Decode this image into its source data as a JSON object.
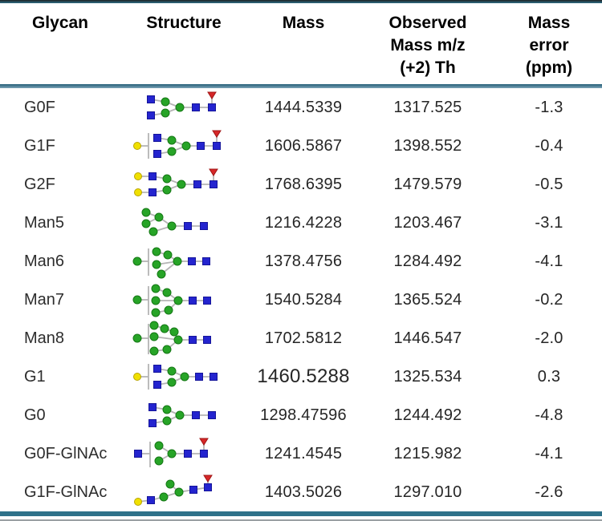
{
  "header": {
    "columns": [
      "Glycan",
      "Structure",
      "Mass",
      "Observed\nMass m/z\n(+2) Th",
      "Mass\nerror\n(ppm)"
    ]
  },
  "rows": [
    {
      "glycan": "G0F",
      "structure": "G0F",
      "mass": "1444.5339",
      "observed": "1317.525",
      "error": "-1.3",
      "mass_large": false
    },
    {
      "glycan": "G1F",
      "structure": "G1F",
      "mass": "1606.5867",
      "observed": "1398.552",
      "error": "-0.4",
      "mass_large": false
    },
    {
      "glycan": "G2F",
      "structure": "G2F",
      "mass": "1768.6395",
      "observed": "1479.579",
      "error": "-0.5",
      "mass_large": false
    },
    {
      "glycan": "Man5",
      "structure": "Man5",
      "mass": "1216.4228",
      "observed": "1203.467",
      "error": "-3.1",
      "mass_large": false
    },
    {
      "glycan": "Man6",
      "structure": "Man6",
      "mass": "1378.4756",
      "observed": "1284.492",
      "error": "-4.1",
      "mass_large": false
    },
    {
      "glycan": "Man7",
      "structure": "Man7",
      "mass": "1540.5284",
      "observed": "1365.524",
      "error": "-0.2",
      "mass_large": false
    },
    {
      "glycan": "Man8",
      "structure": "Man8",
      "mass": "1702.5812",
      "observed": "1446.547",
      "error": "-2.0",
      "mass_large": false
    },
    {
      "glycan": "G1",
      "structure": "G1",
      "mass": "1460.5288",
      "observed": "1325.534",
      "error": "0.3",
      "mass_large": true
    },
    {
      "glycan": "G0",
      "structure": "G0",
      "mass": "1298.47596",
      "observed": "1244.492",
      "error": "-4.8",
      "mass_large": false
    },
    {
      "glycan": "G0F-GlNAc",
      "structure": "G0F-GlNAc",
      "mass": "1241.4545",
      "observed": "1215.982",
      "error": "-4.1",
      "mass_large": false
    },
    {
      "glycan": "G1F-GlNAc",
      "structure": "G1F-GlNAc",
      "mass": "1403.5026",
      "observed": "1297.010",
      "error": "-2.6",
      "mass_large": false
    }
  ],
  "colors": {
    "glcnac_blue": "#2424cf",
    "glcnac_blue_stroke": "#15159a",
    "mannose_green": "#27a427",
    "mannose_green_stroke": "#157815",
    "galactose_yellow": "#f0e000",
    "galactose_yellow_stroke": "#b8a400",
    "fucose_red": "#d62728",
    "fucose_red_stroke": "#a01616",
    "linkage_gray": "#b4b4b4",
    "border_teal": "#2e7189"
  },
  "icon_legend": {
    "blue-square-icon": "GlcNAc",
    "green-circle-icon": "Mannose",
    "yellow-circle-icon": "Galactose",
    "red-triangle-icon": "Fucose"
  },
  "structures": {
    "G0F": {
      "nodes": [
        [
          "sq",
          24,
          12
        ],
        [
          "ci",
          42,
          15
        ],
        [
          "sq",
          24,
          32
        ],
        [
          "ci",
          42,
          29
        ],
        [
          "ci",
          60,
          22
        ],
        [
          "sq",
          80,
          22
        ],
        [
          "sq",
          100,
          22
        ],
        [
          "tri",
          100,
          7
        ]
      ],
      "edges": [
        [
          0,
          1
        ],
        [
          2,
          3
        ],
        [
          1,
          4
        ],
        [
          3,
          4
        ],
        [
          4,
          5
        ],
        [
          5,
          6
        ],
        [
          6,
          7
        ]
      ]
    },
    "G1F": {
      "nodes": [
        [
          "yc",
          7,
          22
        ],
        [
          "sq",
          32,
          12
        ],
        [
          "ci",
          50,
          15
        ],
        [
          "sq",
          32,
          32
        ],
        [
          "ci",
          50,
          29
        ],
        [
          "ci",
          68,
          22
        ],
        [
          "sq",
          86,
          22
        ],
        [
          "sq",
          106,
          22
        ],
        [
          "tri",
          106,
          7
        ]
      ],
      "edges": [
        [
          1,
          2
        ],
        [
          3,
          4
        ],
        [
          2,
          5
        ],
        [
          4,
          5
        ],
        [
          5,
          6
        ],
        [
          6,
          7
        ],
        [
          7,
          8
        ]
      ],
      "bracket": [
        21,
        6,
        38
      ],
      "extra": [
        [
          11,
          22,
          21,
          22
        ]
      ]
    },
    "G2F": {
      "nodes": [
        [
          "yc",
          8,
          12
        ],
        [
          "sq",
          26,
          12
        ],
        [
          "ci",
          44,
          15
        ],
        [
          "yc",
          8,
          32
        ],
        [
          "sq",
          26,
          32
        ],
        [
          "ci",
          44,
          29
        ],
        [
          "ci",
          62,
          22
        ],
        [
          "sq",
          82,
          22
        ],
        [
          "sq",
          102,
          22
        ],
        [
          "tri",
          102,
          7
        ]
      ],
      "edges": [
        [
          0,
          1
        ],
        [
          1,
          2
        ],
        [
          3,
          4
        ],
        [
          4,
          5
        ],
        [
          2,
          6
        ],
        [
          5,
          6
        ],
        [
          6,
          7
        ],
        [
          7,
          8
        ],
        [
          8,
          9
        ]
      ]
    },
    "Man5": {
      "nodes": [
        [
          "ci",
          18,
          9
        ],
        [
          "ci",
          18,
          23
        ],
        [
          "ci",
          34,
          15
        ],
        [
          "ci",
          27,
          33
        ],
        [
          "ci",
          50,
          26
        ],
        [
          "sq",
          70,
          26
        ],
        [
          "sq",
          90,
          26
        ]
      ],
      "edges": [
        [
          0,
          2
        ],
        [
          1,
          2
        ],
        [
          2,
          4
        ],
        [
          3,
          4
        ],
        [
          4,
          5
        ],
        [
          5,
          6
        ]
      ]
    },
    "Man6": {
      "nodes": [
        [
          "ci",
          7,
          22
        ],
        [
          "ci",
          31,
          10
        ],
        [
          "ci",
          45,
          14
        ],
        [
          "ci",
          31,
          26
        ],
        [
          "ci",
          37,
          38
        ],
        [
          "ci",
          57,
          22
        ],
        [
          "sq",
          75,
          22
        ],
        [
          "sq",
          93,
          22
        ]
      ],
      "edges": [
        [
          1,
          2
        ],
        [
          2,
          5
        ],
        [
          3,
          5
        ],
        [
          4,
          5
        ],
        [
          5,
          6
        ],
        [
          6,
          7
        ]
      ],
      "bracket": [
        21,
        6,
        40
      ],
      "extra": [
        [
          11,
          22,
          21,
          22
        ]
      ]
    },
    "Man7": {
      "nodes": [
        [
          "ci",
          7,
          22
        ],
        [
          "ci",
          30,
          8
        ],
        [
          "ci",
          44,
          13
        ],
        [
          "ci",
          30,
          23
        ],
        [
          "ci",
          30,
          38
        ],
        [
          "ci",
          46,
          35
        ],
        [
          "ci",
          58,
          23
        ],
        [
          "sq",
          76,
          23
        ],
        [
          "sq",
          94,
          23
        ]
      ],
      "edges": [
        [
          1,
          2
        ],
        [
          2,
          6
        ],
        [
          3,
          6
        ],
        [
          4,
          5
        ],
        [
          5,
          6
        ],
        [
          6,
          7
        ],
        [
          7,
          8
        ]
      ],
      "bracket": [
        21,
        5,
        41
      ],
      "extra": [
        [
          11,
          22,
          21,
          22
        ]
      ]
    },
    "Man8": {
      "nodes": [
        [
          "ci",
          7,
          22
        ],
        [
          "ci",
          28,
          6
        ],
        [
          "ci",
          41,
          10
        ],
        [
          "ci",
          53,
          14
        ],
        [
          "ci",
          28,
          20
        ],
        [
          "ci",
          28,
          38
        ],
        [
          "ci",
          44,
          36
        ],
        [
          "ci",
          58,
          24
        ],
        [
          "sq",
          76,
          24
        ],
        [
          "sq",
          94,
          24
        ]
      ],
      "edges": [
        [
          1,
          2
        ],
        [
          2,
          3
        ],
        [
          3,
          7
        ],
        [
          4,
          7
        ],
        [
          5,
          6
        ],
        [
          6,
          7
        ],
        [
          7,
          8
        ],
        [
          8,
          9
        ]
      ],
      "bracket": [
        21,
        4,
        42
      ],
      "extra": [
        [
          11,
          22,
          21,
          22
        ]
      ]
    },
    "G1": {
      "nodes": [
        [
          "yc",
          7,
          22
        ],
        [
          "sq",
          32,
          12
        ],
        [
          "ci",
          50,
          15
        ],
        [
          "sq",
          32,
          32
        ],
        [
          "ci",
          50,
          29
        ],
        [
          "ci",
          66,
          22
        ],
        [
          "sq",
          84,
          22
        ],
        [
          "sq",
          102,
          22
        ]
      ],
      "edges": [
        [
          1,
          2
        ],
        [
          3,
          4
        ],
        [
          2,
          5
        ],
        [
          4,
          5
        ],
        [
          5,
          6
        ],
        [
          6,
          7
        ]
      ],
      "bracket": [
        21,
        6,
        38
      ],
      "extra": [
        [
          11,
          22,
          21,
          22
        ]
      ]
    },
    "G0": {
      "nodes": [
        [
          "sq",
          26,
          12
        ],
        [
          "ci",
          44,
          15
        ],
        [
          "sq",
          26,
          32
        ],
        [
          "ci",
          44,
          29
        ],
        [
          "ci",
          60,
          22
        ],
        [
          "sq",
          80,
          22
        ],
        [
          "sq",
          100,
          22
        ]
      ],
      "edges": [
        [
          0,
          1
        ],
        [
          2,
          3
        ],
        [
          1,
          4
        ],
        [
          3,
          4
        ],
        [
          4,
          5
        ],
        [
          5,
          6
        ]
      ]
    },
    "G0F-GlNAc": {
      "nodes": [
        [
          "sq",
          8,
          22
        ],
        [
          "ci",
          34,
          12
        ],
        [
          "ci",
          34,
          31
        ],
        [
          "ci",
          50,
          22
        ],
        [
          "sq",
          70,
          22
        ],
        [
          "sq",
          90,
          22
        ],
        [
          "tri",
          90,
          7
        ]
      ],
      "edges": [
        [
          1,
          3
        ],
        [
          2,
          3
        ],
        [
          3,
          4
        ],
        [
          4,
          5
        ],
        [
          5,
          6
        ]
      ],
      "bracket": [
        23,
        7,
        39
      ],
      "extra": [
        [
          13,
          22,
          23,
          22
        ]
      ]
    },
    "G1F-GlNAc": {
      "nodes": [
        [
          "yc",
          8,
          34
        ],
        [
          "sq",
          24,
          32
        ],
        [
          "ci",
          40,
          28
        ],
        [
          "ci",
          48,
          12
        ],
        [
          "ci",
          59,
          22
        ],
        [
          "sq",
          77,
          19
        ],
        [
          "sq",
          95,
          16
        ],
        [
          "tri",
          95,
          5
        ]
      ],
      "edges": [
        [
          0,
          1
        ],
        [
          1,
          2
        ],
        [
          2,
          4
        ],
        [
          3,
          4
        ],
        [
          4,
          5
        ],
        [
          5,
          6
        ],
        [
          6,
          7
        ]
      ]
    }
  }
}
